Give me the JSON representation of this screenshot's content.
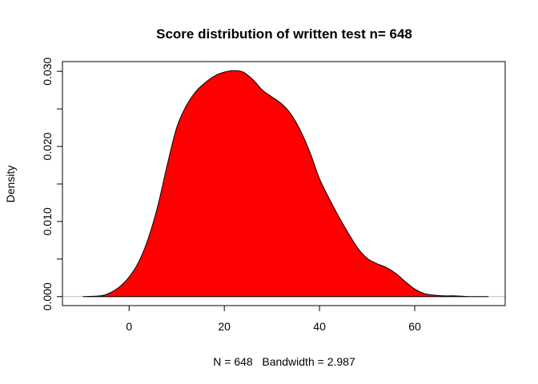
{
  "chart_data": {
    "type": "area",
    "title": "Score distribution of written test n= 648",
    "xlabel": "N = 648   Bandwidth = 2.987",
    "ylabel": "Density",
    "xlim": [
      -14,
      79
    ],
    "ylim": [
      -0.0012,
      0.0313
    ],
    "x_ticks": [
      0,
      20,
      40,
      60
    ],
    "x_tick_labels": [
      "0",
      "20",
      "40",
      "60"
    ],
    "y_ticks": [
      0.0,
      0.01,
      0.02,
      0.03
    ],
    "y_tick_labels": [
      "0.000",
      "0.010",
      "0.020",
      "0.030"
    ],
    "y_minor_ticks": [
      0.005,
      0.015,
      0.025
    ],
    "grid": false,
    "legend": "none",
    "baseline_color": "#bebebe",
    "series": [
      {
        "fill": "#ff0000",
        "stroke": "#000000",
        "x": [
          -9.7,
          -6,
          -4,
          -2,
          0,
          2,
          4,
          6,
          8,
          10,
          12,
          14,
          16,
          18,
          20,
          22,
          24,
          26,
          28,
          30,
          32,
          34,
          36,
          38,
          40,
          42,
          44,
          46,
          48,
          50,
          52,
          54,
          56,
          58,
          60,
          62,
          64,
          66,
          68,
          70,
          72,
          75.5
        ],
        "y": [
          0.0,
          0.0001,
          0.0005,
          0.0013,
          0.0026,
          0.0046,
          0.0077,
          0.012,
          0.0175,
          0.0225,
          0.0254,
          0.0273,
          0.0285,
          0.0294,
          0.0299,
          0.0301,
          0.0299,
          0.0289,
          0.0275,
          0.0266,
          0.0257,
          0.0243,
          0.0221,
          0.0192,
          0.0157,
          0.0131,
          0.0107,
          0.0085,
          0.0065,
          0.0051,
          0.0044,
          0.0039,
          0.0031,
          0.002,
          0.001,
          0.0004,
          0.0002,
          0.0001,
          0.0001,
          5e-05,
          0.0,
          0.0
        ]
      }
    ]
  }
}
